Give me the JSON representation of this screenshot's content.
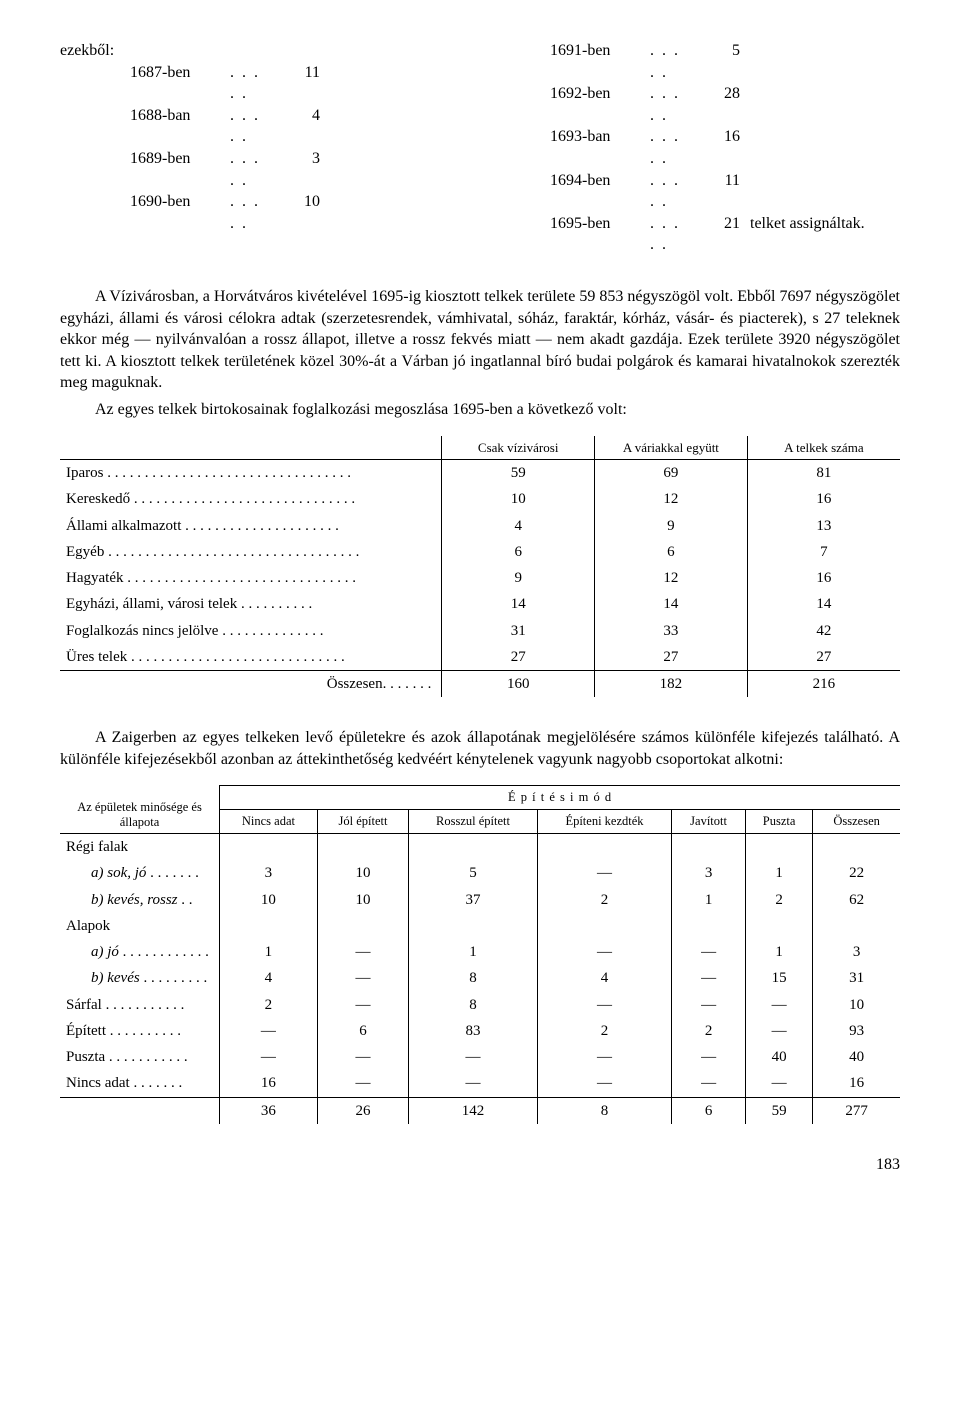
{
  "years": {
    "header": "ezekből:",
    "left": [
      {
        "yr": "1687-ben",
        "v": "11"
      },
      {
        "yr": "1688-ban",
        "v": "4"
      },
      {
        "yr": "1689-ben",
        "v": "3"
      },
      {
        "yr": "1690-ben",
        "v": "10"
      }
    ],
    "right": [
      {
        "yr": "1691-ben",
        "v": "5",
        "t": ""
      },
      {
        "yr": "1692-ben",
        "v": "28",
        "t": ""
      },
      {
        "yr": "1693-ban",
        "v": "16",
        "t": ""
      },
      {
        "yr": "1694-ben",
        "v": "11",
        "t": ""
      },
      {
        "yr": "1695-ben",
        "v": "21",
        "t": "telket assignáltak."
      }
    ]
  },
  "para1": "A Vízivárosban, a Horvátváros kivételével 1695-ig kiosztott telkek területe 59 853 négyszögöl volt. Ebből 7697 négyszögölet egyházi, állami és városi célokra adtak (szerzetes­rendek, vámhivatal, sóház, faraktár, kórház, vásár- és piacterek), s 27 teleknek ekkor még — nyilvánvalóan a rossz állapot, illetve a rossz fekvés miatt — nem akadt gazdája. Ezek területe 3920 négyszögölet tett ki. A kiosztott telkek területének közel 30%-át a Várban jó ingatlannal bíró budai polgárok és kamarai hivatalnokok szerezték meg maguknak.",
  "para1b": "Az egyes telkek birtokosainak foglalkozási megoszlása 1695-ben a következő volt:",
  "table1": {
    "headers": [
      "",
      "Csak vízivárosi",
      "A váriakkal együtt",
      "A telkek száma"
    ],
    "rows": [
      {
        "label": "Iparos",
        "v": [
          "59",
          "69",
          "81"
        ]
      },
      {
        "label": "Kereskedő",
        "v": [
          "10",
          "12",
          "16"
        ]
      },
      {
        "label": "Állami alkalmazott",
        "v": [
          "4",
          "9",
          "13"
        ]
      },
      {
        "label": "Egyéb",
        "v": [
          "6",
          "6",
          "7"
        ]
      },
      {
        "label": "Hagyaték",
        "v": [
          "9",
          "12",
          "16"
        ]
      },
      {
        "label": "Egyházi, állami, városi telek",
        "v": [
          "14",
          "14",
          "14"
        ]
      },
      {
        "label": "Foglalkozás nincs jelölve",
        "v": [
          "31",
          "33",
          "42"
        ]
      },
      {
        "label": "Üres telek",
        "v": [
          "27",
          "27",
          "27"
        ]
      }
    ],
    "sum": {
      "label": "Összesen",
      "v": [
        "160",
        "182",
        "216"
      ]
    }
  },
  "para2": "A Zaigerben az egyes telkeken levő épületekre és azok állapotának megjelölésére számos különféle kifejezés található. A különféle kifejezésekből azonban az áttekinthetőség kedvéért kénytelenek vagyunk nagyobb csoportokat alkotni:",
  "table2": {
    "side": "Az épületek minősége és állapota",
    "group": "É p í t é s i   m ó d",
    "cols": [
      "Nincs adat",
      "Jól épített",
      "Rosszul épített",
      "Építeni kezdték",
      "Javított",
      "Puszta",
      "Összesen"
    ],
    "rows": [
      {
        "label": "Régi falak",
        "sub": false,
        "v": [
          "",
          "",
          "",
          "",
          "",
          "",
          ""
        ]
      },
      {
        "label": "a) sok, jó",
        "sub": true,
        "v": [
          "3",
          "10",
          "5",
          "—",
          "3",
          "1",
          "22"
        ]
      },
      {
        "label": "b) kevés, rossz",
        "sub": true,
        "v": [
          "10",
          "10",
          "37",
          "2",
          "1",
          "2",
          "62"
        ]
      },
      {
        "label": "Alapok",
        "sub": false,
        "v": [
          "",
          "",
          "",
          "",
          "",
          "",
          ""
        ]
      },
      {
        "label": "a) jó",
        "sub": true,
        "v": [
          "1",
          "—",
          "1",
          "—",
          "—",
          "1",
          "3"
        ]
      },
      {
        "label": "b) kevés",
        "sub": true,
        "v": [
          "4",
          "—",
          "8",
          "4",
          "—",
          "15",
          "31"
        ]
      },
      {
        "label": "Sárfal",
        "sub": false,
        "v": [
          "2",
          "—",
          "8",
          "—",
          "—",
          "—",
          "10"
        ]
      },
      {
        "label": "Épített",
        "sub": false,
        "v": [
          "—",
          "6",
          "83",
          "2",
          "2",
          "—",
          "93"
        ]
      },
      {
        "label": "Puszta",
        "sub": false,
        "v": [
          "—",
          "—",
          "—",
          "—",
          "—",
          "40",
          "40"
        ]
      },
      {
        "label": "Nincs adat",
        "sub": false,
        "v": [
          "16",
          "—",
          "—",
          "—",
          "—",
          "—",
          "16"
        ]
      }
    ],
    "sum": {
      "v": [
        "36",
        "26",
        "142",
        "8",
        "6",
        "59",
        "277"
      ]
    }
  },
  "pagenum": "183"
}
